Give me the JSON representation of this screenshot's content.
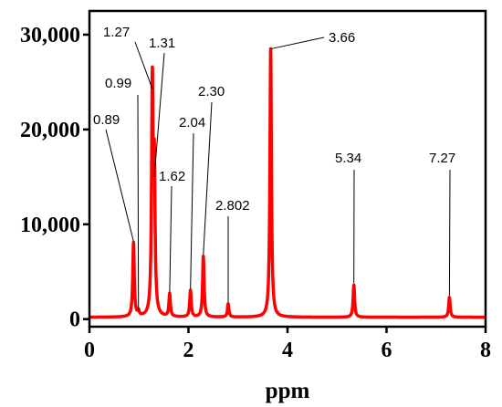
{
  "chart_data": {
    "type": "line",
    "title": "",
    "xlabel": "ppm",
    "ylabel": "",
    "xlim": [
      0,
      8
    ],
    "ylim": [
      -800,
      32500
    ],
    "x_ticks": [
      0,
      2,
      4,
      6,
      8
    ],
    "x_tick_labels": [
      "0",
      "2",
      "4",
      "6",
      "8"
    ],
    "y_ticks": [
      0,
      10000,
      20000,
      30000
    ],
    "y_tick_labels": [
      "0",
      "10,000",
      "20,000",
      "30,000"
    ],
    "grid": false,
    "legend": "none",
    "line_color": "#ff0000",
    "baseline": 200,
    "peaks": [
      {
        "x": 0.89,
        "y": 7800
      },
      {
        "x": 0.99,
        "y": 500
      },
      {
        "x": 1.27,
        "y": 23900
      },
      {
        "x": 1.31,
        "y": 14600
      },
      {
        "x": 1.62,
        "y": 2400
      },
      {
        "x": 2.04,
        "y": 2800
      },
      {
        "x": 2.3,
        "y": 6400
      },
      {
        "x": 2.802,
        "y": 1400
      },
      {
        "x": 3.66,
        "y": 28300
      },
      {
        "x": 5.34,
        "y": 3400
      },
      {
        "x": 7.27,
        "y": 2100
      }
    ],
    "annotations": [
      {
        "label": "0.89",
        "x": 0.89
      },
      {
        "label": "0.99",
        "x": 0.99
      },
      {
        "label": "1.27",
        "x": 1.27
      },
      {
        "label": "1.31",
        "x": 1.31
      },
      {
        "label": "1.62",
        "x": 1.62
      },
      {
        "label": "2.04",
        "x": 2.04
      },
      {
        "label": "2.30",
        "x": 2.3
      },
      {
        "label": "2.802",
        "x": 2.802
      },
      {
        "label": "3.66",
        "x": 3.66
      },
      {
        "label": "5.34",
        "x": 5.34
      },
      {
        "label": "7.27",
        "x": 7.27
      }
    ]
  }
}
